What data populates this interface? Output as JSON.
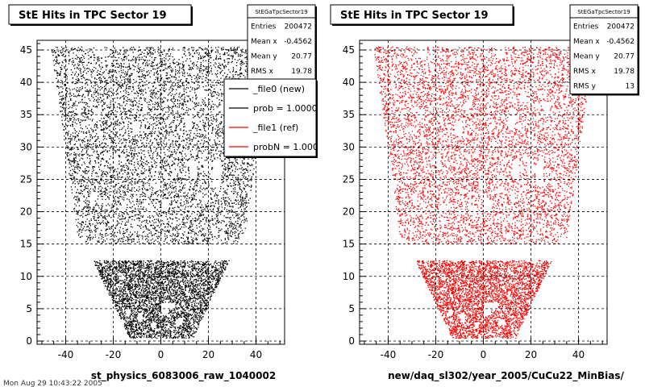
{
  "chart_data": [
    {
      "type": "scatter",
      "title": "StE Hits in TPC Sector 19",
      "xlabel": "st_physics_6083006_raw_1040002",
      "ylabel": "",
      "xlim": [
        -52,
        52
      ],
      "ylim": [
        -0.5,
        46.5
      ],
      "xticks": [
        -40,
        -20,
        0,
        20,
        40
      ],
      "yticks": [
        0,
        5,
        10,
        15,
        20,
        25,
        30,
        35,
        40,
        45
      ],
      "grid": true,
      "marker_color": "#000000",
      "legend_placement": "top-right",
      "stats_box": {
        "title": "StEGaTpcSector19",
        "rows": [
          {
            "label": "Entries",
            "value": "200472"
          },
          {
            "label": "Mean x",
            "value": "-0.4562"
          },
          {
            "label": "Mean y",
            "value": "20.77"
          },
          {
            "label": "RMS x",
            "value": "19.78"
          }
        ]
      },
      "legend": [
        {
          "label": "_file0 (new)",
          "color": "#000000"
        },
        {
          "label": "prob = 1.000000",
          "color": "#000000"
        },
        {
          "label": "_file1 (ref)",
          "color": "#ff0000"
        },
        {
          "label": "probN = 1.000000",
          "color": "#ff0000"
        }
      ],
      "region": {
        "rows": [
          1,
          45
        ],
        "half_width_outer_row45": 46,
        "half_width_outer_row16": 35,
        "half_width_inner_row12": 28,
        "half_width_inner_row1": 14,
        "gap_between_sectors": 13.5
      }
    },
    {
      "type": "scatter",
      "title": "StE Hits in TPC Sector 19",
      "xlabel": "new/daq_sl302/year_2005/CuCu22_MinBias/",
      "ylabel": "",
      "xlim": [
        -52,
        52
      ],
      "ylim": [
        -0.5,
        46.5
      ],
      "xticks": [
        -40,
        -20,
        0,
        20,
        40
      ],
      "yticks": [
        0,
        5,
        10,
        15,
        20,
        25,
        30,
        35,
        40,
        45
      ],
      "grid": true,
      "marker_color": "#ff0000",
      "stats_box": {
        "title": "StEGaTpcSector19",
        "rows": [
          {
            "label": "Entries",
            "value": "200472"
          },
          {
            "label": "Mean x",
            "value": "-0.4562"
          },
          {
            "label": "Mean y",
            "value": "20.77"
          },
          {
            "label": "RMS x",
            "value": "19.78"
          },
          {
            "label": "RMS y",
            "value": "13"
          }
        ]
      },
      "region": {
        "rows": [
          1,
          45
        ],
        "half_width_outer_row45": 46,
        "half_width_outer_row16": 35,
        "half_width_inner_row12": 28,
        "half_width_inner_row1": 14,
        "gap_between_sectors": 13.5
      }
    }
  ],
  "footer_text": "Mon Aug 29 10:43:22 2005"
}
